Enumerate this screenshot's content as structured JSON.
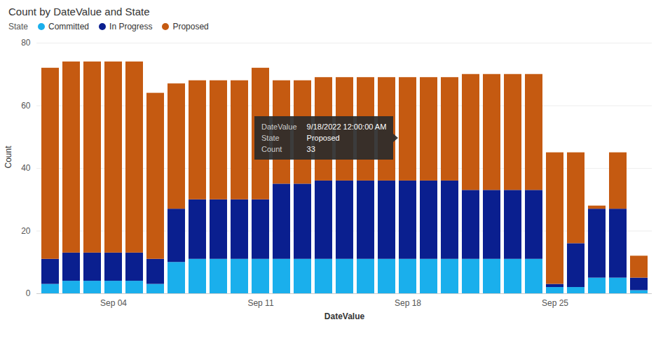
{
  "chart_data": {
    "type": "bar",
    "stacked": true,
    "title": "Count by DateValue and State",
    "xlabel": "DateValue",
    "ylabel": "Count",
    "legend_title": "State",
    "legend": "top-left",
    "categories": [
      null,
      null,
      null,
      "Sep 04",
      null,
      null,
      null,
      null,
      null,
      null,
      "Sep 11",
      null,
      null,
      null,
      null,
      null,
      null,
      "Sep 18",
      null,
      null,
      null,
      null,
      null,
      null,
      "Sep 25",
      null,
      null,
      null,
      null
    ],
    "series": [
      {
        "name": "Committed",
        "color": "#1AAFEC",
        "values": [
          3,
          4,
          4,
          4,
          4,
          3,
          10,
          11,
          11,
          11,
          11,
          11,
          11,
          11,
          11,
          11,
          11,
          11,
          11,
          11,
          11,
          11,
          11,
          11,
          2,
          2,
          5,
          5,
          1
        ]
      },
      {
        "name": "In Progress",
        "color": "#0A1F8F",
        "values": [
          8,
          9,
          9,
          9,
          9,
          8,
          17,
          19,
          19,
          19,
          19,
          24,
          24,
          25,
          25,
          25,
          25,
          25,
          25,
          25,
          22,
          22,
          22,
          22,
          1,
          14,
          22,
          22,
          4
        ]
      },
      {
        "name": "Proposed",
        "color": "#C55A11",
        "values": [
          61,
          61,
          61,
          61,
          61,
          53,
          40,
          38,
          38,
          38,
          42,
          33,
          33,
          33,
          33,
          33,
          33,
          33,
          33,
          33,
          37,
          37,
          37,
          37,
          42,
          29,
          1,
          18,
          7
        ]
      }
    ],
    "ylim": [
      0,
      80
    ],
    "yticks": [
      0,
      20,
      40,
      60,
      80
    ],
    "grid": true,
    "annotations": [
      {
        "label": "DateValue",
        "text": "9/18/2022 12:00:00 AM"
      },
      {
        "label": "State",
        "text": "Proposed"
      },
      {
        "label": "Count",
        "text": "33"
      }
    ]
  }
}
